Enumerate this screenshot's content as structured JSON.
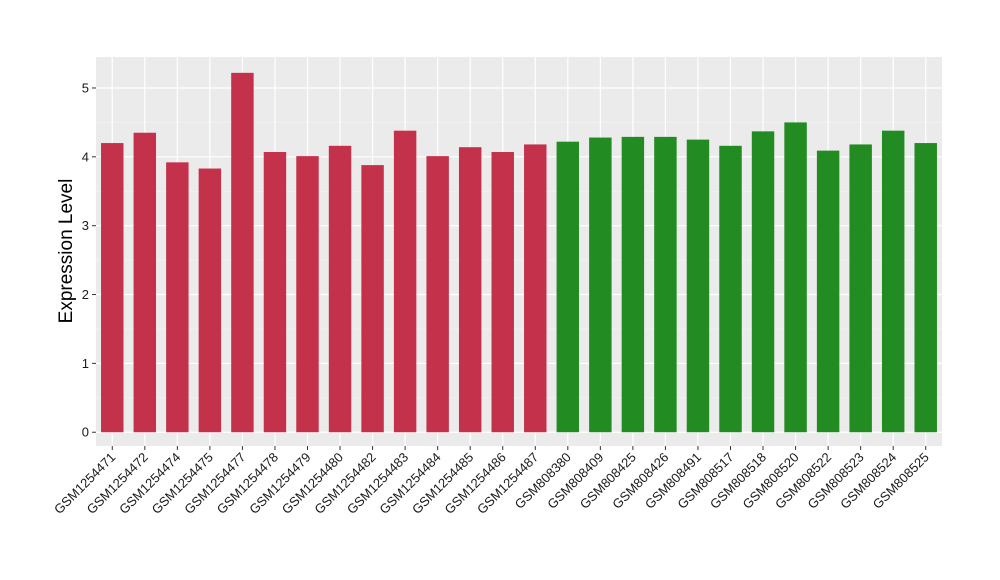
{
  "chart_data": {
    "type": "bar",
    "title": "",
    "xlabel": "",
    "ylabel": "Expression Level",
    "ylim": [
      -0.2,
      5.45
    ],
    "yticks": [
      0,
      1,
      2,
      3,
      4,
      5
    ],
    "grid": true,
    "legend": "none",
    "colors": {
      "group1": "#c4314b",
      "group2": "#228b22",
      "panel": "#ebebeb",
      "grid": "#ffffff"
    },
    "categories": [
      "GSM1254471",
      "GSM1254472",
      "GSM1254474",
      "GSM1254475",
      "GSM1254477",
      "GSM1254478",
      "GSM1254479",
      "GSM1254480",
      "GSM1254482",
      "GSM1254483",
      "GSM1254484",
      "GSM1254485",
      "GSM1254486",
      "GSM1254487",
      "GSM808380",
      "GSM808409",
      "GSM808425",
      "GSM808426",
      "GSM808491",
      "GSM808517",
      "GSM808518",
      "GSM808520",
      "GSM808522",
      "GSM808523",
      "GSM808524",
      "GSM808525"
    ],
    "values": [
      4.2,
      4.35,
      3.92,
      3.83,
      5.22,
      4.07,
      4.01,
      4.16,
      3.88,
      4.38,
      4.01,
      4.14,
      4.07,
      4.18,
      4.22,
      4.28,
      4.29,
      4.29,
      4.25,
      4.16,
      4.37,
      4.5,
      4.09,
      4.18,
      4.38,
      4.2
    ],
    "groups": [
      1,
      1,
      1,
      1,
      1,
      1,
      1,
      1,
      1,
      1,
      1,
      1,
      1,
      1,
      2,
      2,
      2,
      2,
      2,
      2,
      2,
      2,
      2,
      2,
      2,
      2
    ]
  }
}
